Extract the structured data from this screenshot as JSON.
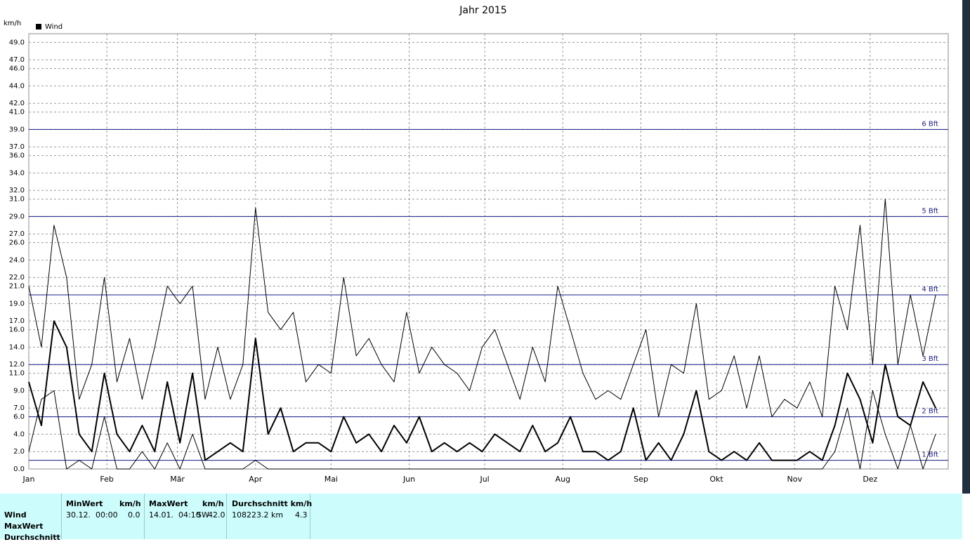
{
  "chart_data": {
    "type": "line",
    "title": "Jahr 2015",
    "y_label": "km/h",
    "x": [
      1,
      6,
      11,
      16,
      21,
      26,
      31,
      36,
      41,
      46,
      51,
      56,
      61,
      66,
      71,
      76,
      81,
      86,
      91,
      96,
      101,
      106,
      111,
      116,
      121,
      126,
      131,
      136,
      141,
      146,
      151,
      156,
      161,
      166,
      171,
      176,
      181,
      186,
      191,
      196,
      201,
      206,
      211,
      216,
      221,
      226,
      231,
      236,
      241,
      246,
      251,
      256,
      261,
      266,
      271,
      276,
      281,
      286,
      291,
      296,
      301,
      306,
      311,
      316,
      321,
      326,
      331,
      336,
      341,
      346,
      351,
      356,
      361
    ],
    "xlim": [
      1,
      366
    ],
    "xticks": [
      {
        "value": 1,
        "label": "Jan"
      },
      {
        "value": 32,
        "label": "Feb"
      },
      {
        "value": 60,
        "label": "Mär"
      },
      {
        "value": 91,
        "label": "Apr"
      },
      {
        "value": 121,
        "label": "Mai"
      },
      {
        "value": 152,
        "label": "Jun"
      },
      {
        "value": 182,
        "label": "Jul"
      },
      {
        "value": 213,
        "label": "Aug"
      },
      {
        "value": 244,
        "label": "Sep"
      },
      {
        "value": 274,
        "label": "Okt"
      },
      {
        "value": 305,
        "label": "Nov"
      },
      {
        "value": 335,
        "label": "Dez"
      }
    ],
    "ylim": [
      0,
      50
    ],
    "yticks": [
      {
        "value": 0,
        "label": "0.0"
      },
      {
        "value": 2,
        "label": "2.0"
      },
      {
        "value": 4,
        "label": "4.0"
      },
      {
        "value": 6,
        "label": "6.0"
      },
      {
        "value": 7,
        "label": "7.0"
      },
      {
        "value": 9,
        "label": "9.0"
      },
      {
        "value": 11,
        "label": "11.0"
      },
      {
        "value": 12,
        "label": "12.0"
      },
      {
        "value": 14,
        "label": "14.0"
      },
      {
        "value": 16,
        "label": "16.0"
      },
      {
        "value": 17,
        "label": "17.0"
      },
      {
        "value": 19,
        "label": "19.0"
      },
      {
        "value": 21,
        "label": "21.0"
      },
      {
        "value": 22,
        "label": "22.0"
      },
      {
        "value": 24,
        "label": "24.0"
      },
      {
        "value": 26,
        "label": "26.0"
      },
      {
        "value": 27,
        "label": "27.0"
      },
      {
        "value": 29,
        "label": "29.0"
      },
      {
        "value": 31,
        "label": "31.0"
      },
      {
        "value": 32,
        "label": "32.0"
      },
      {
        "value": 34,
        "label": "34.0"
      },
      {
        "value": 36,
        "label": "36.0"
      },
      {
        "value": 37,
        "label": "37.0"
      },
      {
        "value": 39,
        "label": "39.0"
      },
      {
        "value": 41,
        "label": "41.0"
      },
      {
        "value": 42,
        "label": "42.0"
      },
      {
        "value": 44,
        "label": "44.0"
      },
      {
        "value": 46,
        "label": "46.0"
      },
      {
        "value": 47,
        "label": "47.0"
      },
      {
        "value": 49,
        "label": "49.0"
      }
    ],
    "grid": true,
    "bft_lines": [
      {
        "value": 1,
        "label": "1 Bft"
      },
      {
        "value": 6,
        "label": "2 Bft"
      },
      {
        "value": 12,
        "label": "3 Bft"
      },
      {
        "value": 20,
        "label": "4 Bft"
      },
      {
        "value": 29,
        "label": "5 Bft"
      },
      {
        "value": 39,
        "label": "6 Bft"
      }
    ],
    "series": [
      {
        "name": "Wind",
        "color": "#000000",
        "width": 2,
        "values": [
          10,
          5,
          17,
          14,
          4,
          2,
          11,
          4,
          2,
          5,
          2,
          10,
          3,
          11,
          1,
          2,
          3,
          2,
          15,
          4,
          7,
          2,
          3,
          3,
          2,
          6,
          3,
          4,
          2,
          5,
          3,
          6,
          2,
          3,
          2,
          3,
          2,
          4,
          3,
          2,
          5,
          2,
          3,
          6,
          2,
          2,
          1,
          2,
          7,
          1,
          3,
          1,
          4,
          9,
          2,
          1,
          2,
          1,
          3,
          1,
          1,
          1,
          2,
          1,
          5,
          11,
          8,
          3,
          12,
          6,
          5,
          10,
          7
        ]
      },
      {
        "color": "#000000",
        "width": 1,
        "values": [
          21,
          14,
          28,
          22,
          8,
          12,
          22,
          10,
          15,
          8,
          14,
          21,
          19,
          21,
          8,
          14,
          8,
          12,
          30,
          18,
          16,
          18,
          10,
          12,
          11,
          22,
          13,
          15,
          12,
          10,
          18,
          11,
          14,
          12,
          11,
          9,
          14,
          16,
          12,
          8,
          14,
          10,
          21,
          16,
          11,
          8,
          9,
          8,
          12,
          16,
          6,
          12,
          11,
          19,
          8,
          9,
          13,
          7,
          13,
          6,
          8,
          7,
          10,
          6,
          21,
          16,
          28,
          12,
          31,
          12,
          20,
          13,
          20
        ]
      },
      {
        "color": "#000000",
        "width": 1,
        "values": [
          2,
          8,
          9,
          0,
          1,
          0,
          6,
          0,
          0,
          2,
          0,
          3,
          0,
          4,
          0,
          0,
          0,
          0,
          1,
          0,
          0,
          0,
          0,
          0,
          0,
          0,
          0,
          0,
          0,
          0,
          0,
          0,
          0,
          0,
          0,
          0,
          0,
          0,
          0,
          0,
          0,
          0,
          0,
          0,
          0,
          0,
          0,
          0,
          0,
          0,
          0,
          0,
          0,
          0,
          0,
          0,
          0,
          0,
          0,
          0,
          0,
          0,
          0,
          0,
          2,
          7,
          0,
          9,
          4,
          0,
          5,
          0,
          4
        ]
      }
    ]
  },
  "summary": {
    "headers": [
      "MinWert",
      "km/h",
      "MaxWert",
      "km/h",
      "Durchschnitt km/h"
    ],
    "row_labels": [
      "Wind",
      "MaxWert",
      "Durchschnitt"
    ],
    "wind": [
      "30.12.  00:00",
      "0.0",
      "14.01.  04:10",
      "SW",
      "42.0",
      "108223.2 km",
      "4.3"
    ]
  }
}
